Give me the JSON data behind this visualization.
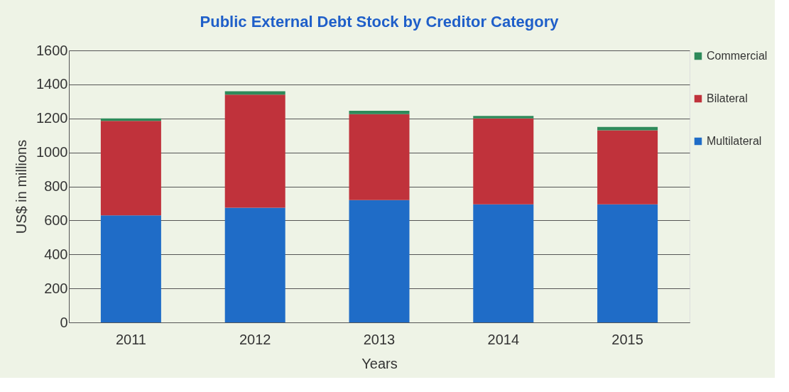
{
  "chart_data": {
    "type": "bar",
    "title": "Public External Debt Stock by Creditor Category",
    "xlabel": "Years",
    "ylabel": "US$ in millions",
    "categories": [
      "2011",
      "2012",
      "2013",
      "2014",
      "2015"
    ],
    "series": [
      {
        "name": "Multilateral",
        "color": "#1f6cc7",
        "values": [
          630,
          675,
          720,
          695,
          695
        ]
      },
      {
        "name": "Bilateral",
        "color": "#c0323b",
        "values": [
          555,
          665,
          505,
          505,
          435
        ]
      },
      {
        "name": "Commercial",
        "color": "#2e8a5a",
        "values": [
          15,
          20,
          20,
          15,
          20
        ]
      }
    ],
    "stacked": true,
    "ylim": [
      0,
      1600
    ],
    "yticks": [
      0,
      200,
      400,
      600,
      800,
      1000,
      1200,
      1400,
      1600
    ],
    "grid": "y",
    "legend": "right"
  }
}
